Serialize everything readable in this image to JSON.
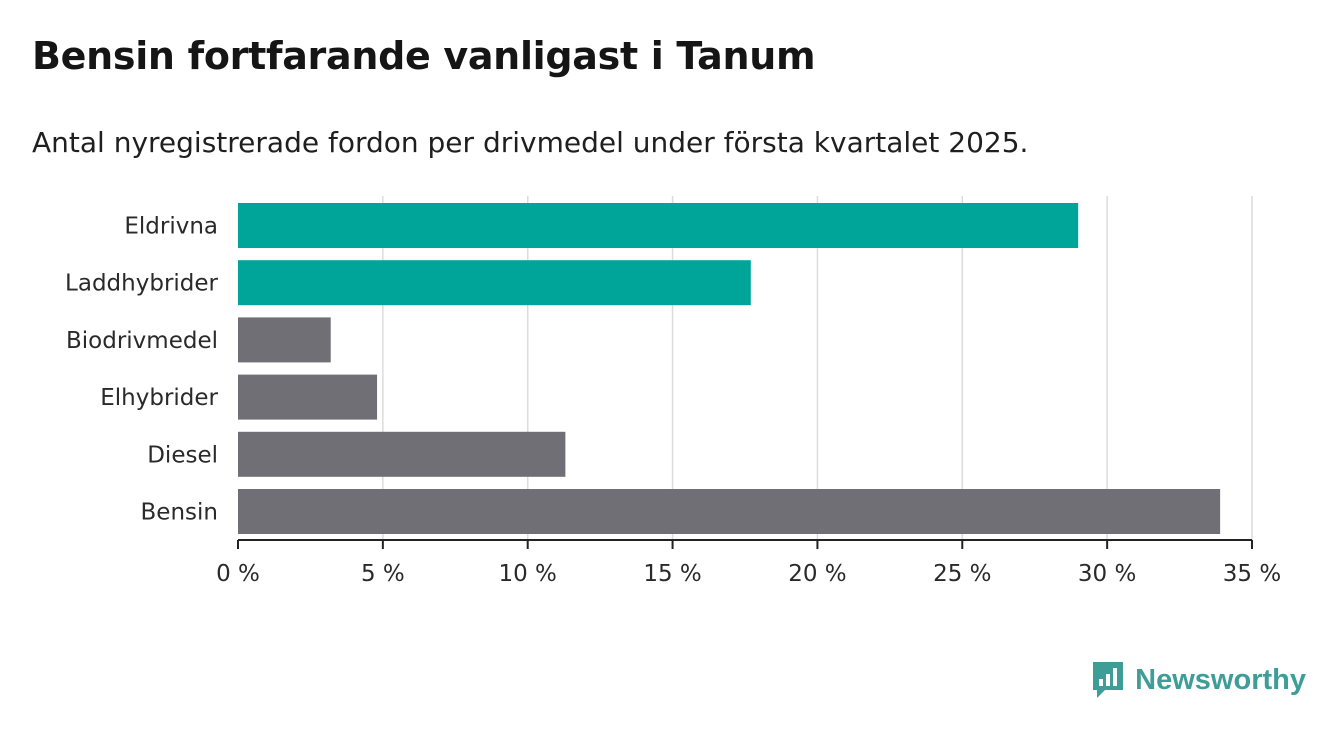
{
  "title": "Bensin fortfarande vanligast i Tanum",
  "subtitle": "Antal nyregistrerade fordon per drivmedel under första kvartalet 2025.",
  "brand": {
    "name": "Newsworthy",
    "icon": "bar-chart-speech-icon"
  },
  "colors": {
    "highlight": "#00a59a",
    "default": "#706f75",
    "grid": "#dcdcdc",
    "axis": "#222222"
  },
  "chart_data": {
    "type": "bar",
    "orientation": "horizontal",
    "categories": [
      "Eldrivna",
      "Laddhybrider",
      "Biodrivmedel",
      "Elhybrider",
      "Diesel",
      "Bensin"
    ],
    "values": [
      29.0,
      17.7,
      3.2,
      4.8,
      11.3,
      33.9
    ],
    "highlighted": [
      true,
      true,
      false,
      false,
      false,
      false
    ],
    "xlim": [
      0,
      35
    ],
    "xticks": [
      0,
      5,
      10,
      15,
      20,
      25,
      30,
      35
    ],
    "xtick_labels": [
      "0 %",
      "5 %",
      "10 %",
      "15 %",
      "20 %",
      "25 %",
      "30 %",
      "35 %"
    ],
    "grid": true,
    "xlabel": "",
    "ylabel": ""
  }
}
